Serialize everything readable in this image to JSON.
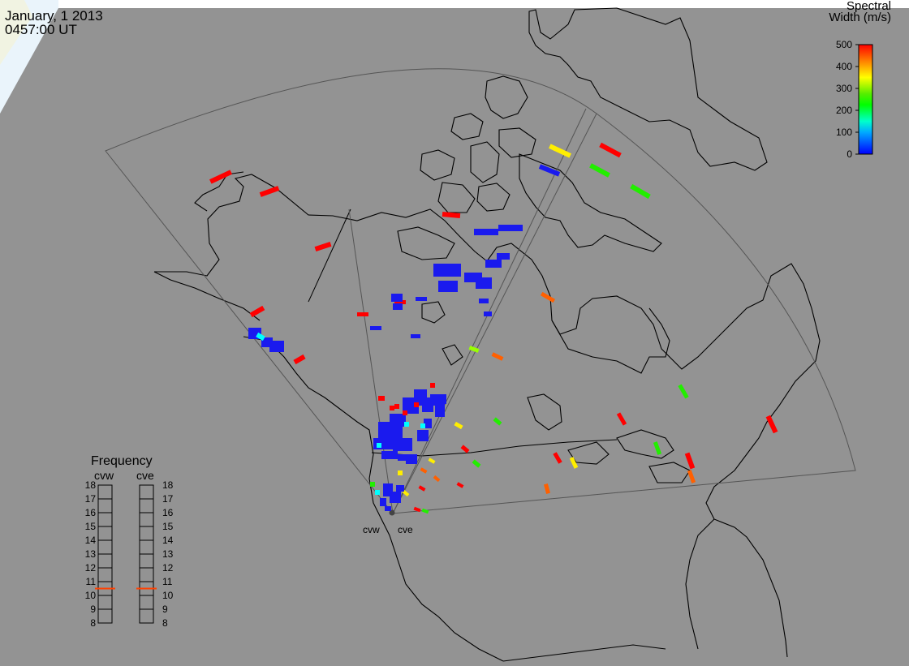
{
  "header": {
    "date": "January, 1 2013",
    "time": "0457:00 UT"
  },
  "colorbar": {
    "title_line1": "Spectral",
    "title_line2": "Width (m/s)",
    "ticks": [
      "500",
      "400",
      "300",
      "200",
      "100",
      "0"
    ],
    "min": 0,
    "max": 500
  },
  "frequency_panel": {
    "title": "Frequency",
    "radars": [
      "cvw",
      "cve"
    ],
    "scale": [
      "18",
      "17",
      "16",
      "15",
      "14",
      "13",
      "12",
      "11",
      "10",
      "9",
      "8"
    ],
    "min": 8,
    "max": 18,
    "values": [
      10.5,
      10.5
    ],
    "marker_color": "#ff4000"
  },
  "sites": [
    "cvw",
    "cve"
  ],
  "colors": {
    "background": "#939393",
    "coast": "#000000",
    "fov": "#4a4a4a"
  }
}
